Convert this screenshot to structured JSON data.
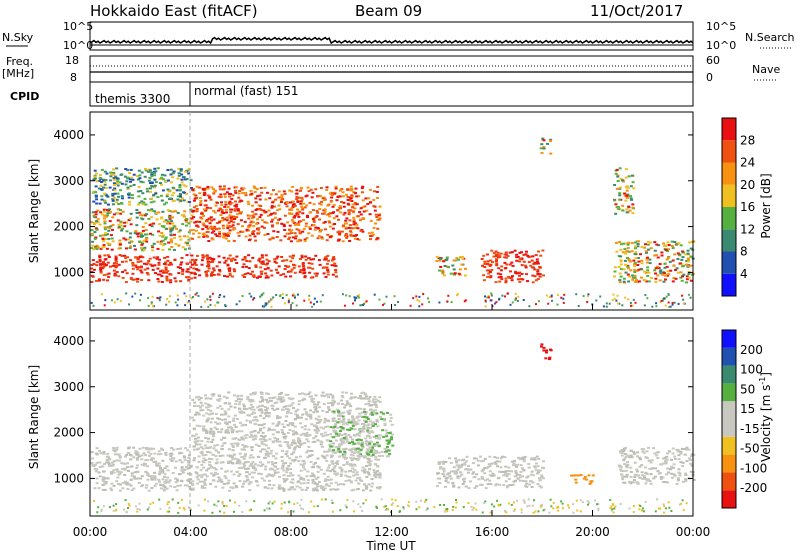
{
  "header": {
    "station": "Hokkaido East (fitACF)",
    "beam": "Beam 09",
    "date": "11/Oct/2017"
  },
  "noise_panel": {
    "left_label": "N.Sky",
    "right_label": "N.Search",
    "ticks": [
      "10^5",
      "10^0"
    ]
  },
  "freq_panel": {
    "left_label": "Freq.",
    "unit_label": "[MHz]",
    "left_ticks": [
      "18",
      "8"
    ],
    "right_ticks": [
      "60",
      "0"
    ],
    "right_label": "Nave"
  },
  "cpid_panel": {
    "label": "CPID",
    "segments": [
      {
        "name": "themis 3300",
        "start_hour": 0,
        "end_hour": 4
      },
      {
        "name": "normal (fast) 151",
        "start_hour": 4,
        "end_hour": 24
      }
    ]
  },
  "colors": {
    "power_scale": [
      "#1010ff",
      "#2050b0",
      "#3a8a70",
      "#55b040",
      "#f0c020",
      "#f89010",
      "#f05010",
      "#e81010"
    ],
    "velocity_scale": [
      "#e81010",
      "#f05010",
      "#f89010",
      "#f0c020",
      "#c8c8c0",
      "#c8c8c0",
      "#55b040",
      "#3a8a70",
      "#2050b0",
      "#1010ff"
    ],
    "ground_scatter": "#c8c8c0"
  },
  "chart_data": [
    {
      "type": "heatmap",
      "title": "",
      "ylabel": "Slant Range [km]",
      "xlabel": "",
      "ylim": [
        180,
        4500
      ],
      "xlim": [
        0,
        24
      ],
      "yticks": [
        "1000",
        "2000",
        "3000",
        "4000"
      ],
      "colorbar": {
        "label": "Power [dB]",
        "ticks": [
          "28",
          "24",
          "20",
          "16",
          "12",
          "8",
          "4"
        ],
        "range": [
          0,
          32
        ]
      },
      "regions": [
        {
          "t": [
            0.0,
            4.0
          ],
          "r": [
            800,
            1400
          ],
          "level": "28 dB"
        },
        {
          "t": [
            4.0,
            9.8
          ],
          "r": [
            900,
            1400
          ],
          "level": "28 dB"
        },
        {
          "t": [
            0.0,
            4.0
          ],
          "r": [
            1500,
            2400
          ],
          "level": "12-28 dB"
        },
        {
          "t": [
            4.0,
            11.5
          ],
          "r": [
            1700,
            2900
          ],
          "level": "24-28 dB"
        },
        {
          "t": [
            0.0,
            4.0
          ],
          "r": [
            2500,
            3300
          ],
          "level": "4-16 dB"
        },
        {
          "t": [
            13.7,
            14.9
          ],
          "r": [
            950,
            1400
          ],
          "level": "12-20 dB"
        },
        {
          "t": [
            15.5,
            18.0
          ],
          "r": [
            800,
            1500
          ],
          "level": "28 dB"
        },
        {
          "t": [
            17.9,
            18.3
          ],
          "r": [
            3600,
            3950
          ],
          "level": "12-24 dB"
        },
        {
          "t": [
            20.8,
            24.0
          ],
          "r": [
            800,
            1700
          ],
          "level": "16-28 dB"
        },
        {
          "t": [
            20.8,
            21.6
          ],
          "r": [
            2300,
            3300
          ],
          "level": "12-20 dB"
        }
      ]
    },
    {
      "type": "heatmap",
      "title": "",
      "ylabel": "Slant Range [km]",
      "xlabel": "Time UT",
      "ylim": [
        180,
        4500
      ],
      "xlim": [
        0,
        24
      ],
      "xticks": [
        "00:00",
        "04:00",
        "08:00",
        "12:00",
        "16:00",
        "20:00",
        "00:00"
      ],
      "yticks": [
        "1000",
        "2000",
        "3000",
        "4000"
      ],
      "colorbar": {
        "label": "Velocity [m s",
        "label_sup": "-1",
        "label_end": "]",
        "ticks": [
          "200",
          "100",
          "50",
          "15",
          "-15",
          "-50",
          "-100",
          "-200"
        ],
        "range": [
          -250,
          250
        ]
      },
      "regions": [
        {
          "t": [
            0.0,
            11.5
          ],
          "r": [
            750,
            1700
          ],
          "level": "ground scatter"
        },
        {
          "t": [
            4.0,
            11.5
          ],
          "r": [
            1700,
            2900
          ],
          "level": "ground scatter"
        },
        {
          "t": [
            13.7,
            18.0
          ],
          "r": [
            800,
            1500
          ],
          "level": "ground scatter"
        },
        {
          "t": [
            21.0,
            24.0
          ],
          "r": [
            900,
            1700
          ],
          "level": "ground scatter"
        },
        {
          "t": [
            17.9,
            18.3
          ],
          "r": [
            3600,
            3950
          ],
          "level": "-200 m/s"
        },
        {
          "t": [
            9.5,
            12.0
          ],
          "r": [
            1500,
            2500
          ],
          "level": "15-50 m/s"
        },
        {
          "t": [
            19.0,
            20.0
          ],
          "r": [
            900,
            1100
          ],
          "level": "-50 m/s"
        }
      ]
    }
  ]
}
